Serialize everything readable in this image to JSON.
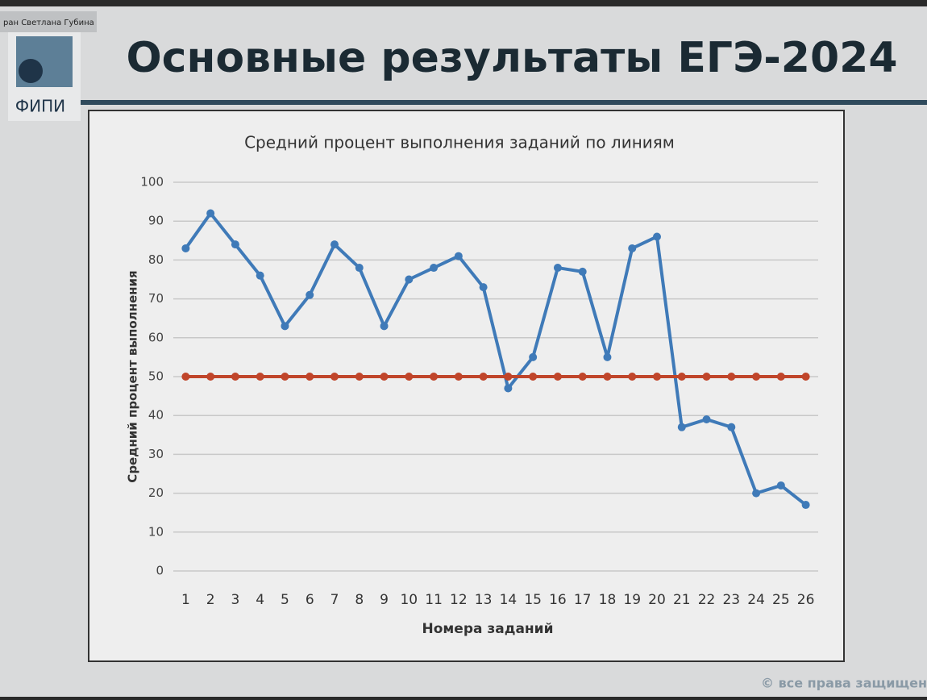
{
  "slide": {
    "presenter": "ран Светлана Губина",
    "title": "Основные результаты ЕГЭ-2024",
    "logo": "ФИПИ",
    "copyright": "© все права защищен"
  },
  "chart_data": {
    "type": "line",
    "title": "Средний процент выполнения заданий по линиям",
    "x_label": "Номера заданий",
    "y_label": "Средний процент выполнения",
    "categories": [
      1,
      2,
      3,
      4,
      5,
      6,
      7,
      8,
      9,
      10,
      11,
      12,
      13,
      14,
      15,
      16,
      17,
      18,
      19,
      20,
      21,
      22,
      23,
      24,
      25,
      26
    ],
    "series": [
      {
        "color": "#3f7ab8",
        "values": [
          83,
          92,
          84,
          76,
          63,
          71,
          84,
          78,
          63,
          75,
          78,
          81,
          73,
          47,
          55,
          78,
          77,
          55,
          83,
          86,
          37,
          39,
          37,
          20,
          22,
          17
        ]
      },
      {
        "color": "#c0452a",
        "values": [
          50,
          50,
          50,
          50,
          50,
          50,
          50,
          50,
          50,
          50,
          50,
          50,
          50,
          50,
          50,
          50,
          50,
          50,
          50,
          50,
          50,
          50,
          50,
          50,
          50,
          50
        ]
      }
    ],
    "ylim": [
      0,
      100
    ],
    "yticks": [
      0,
      10,
      20,
      30,
      40,
      50,
      60,
      70,
      80,
      90,
      100
    ],
    "grid": true
  }
}
